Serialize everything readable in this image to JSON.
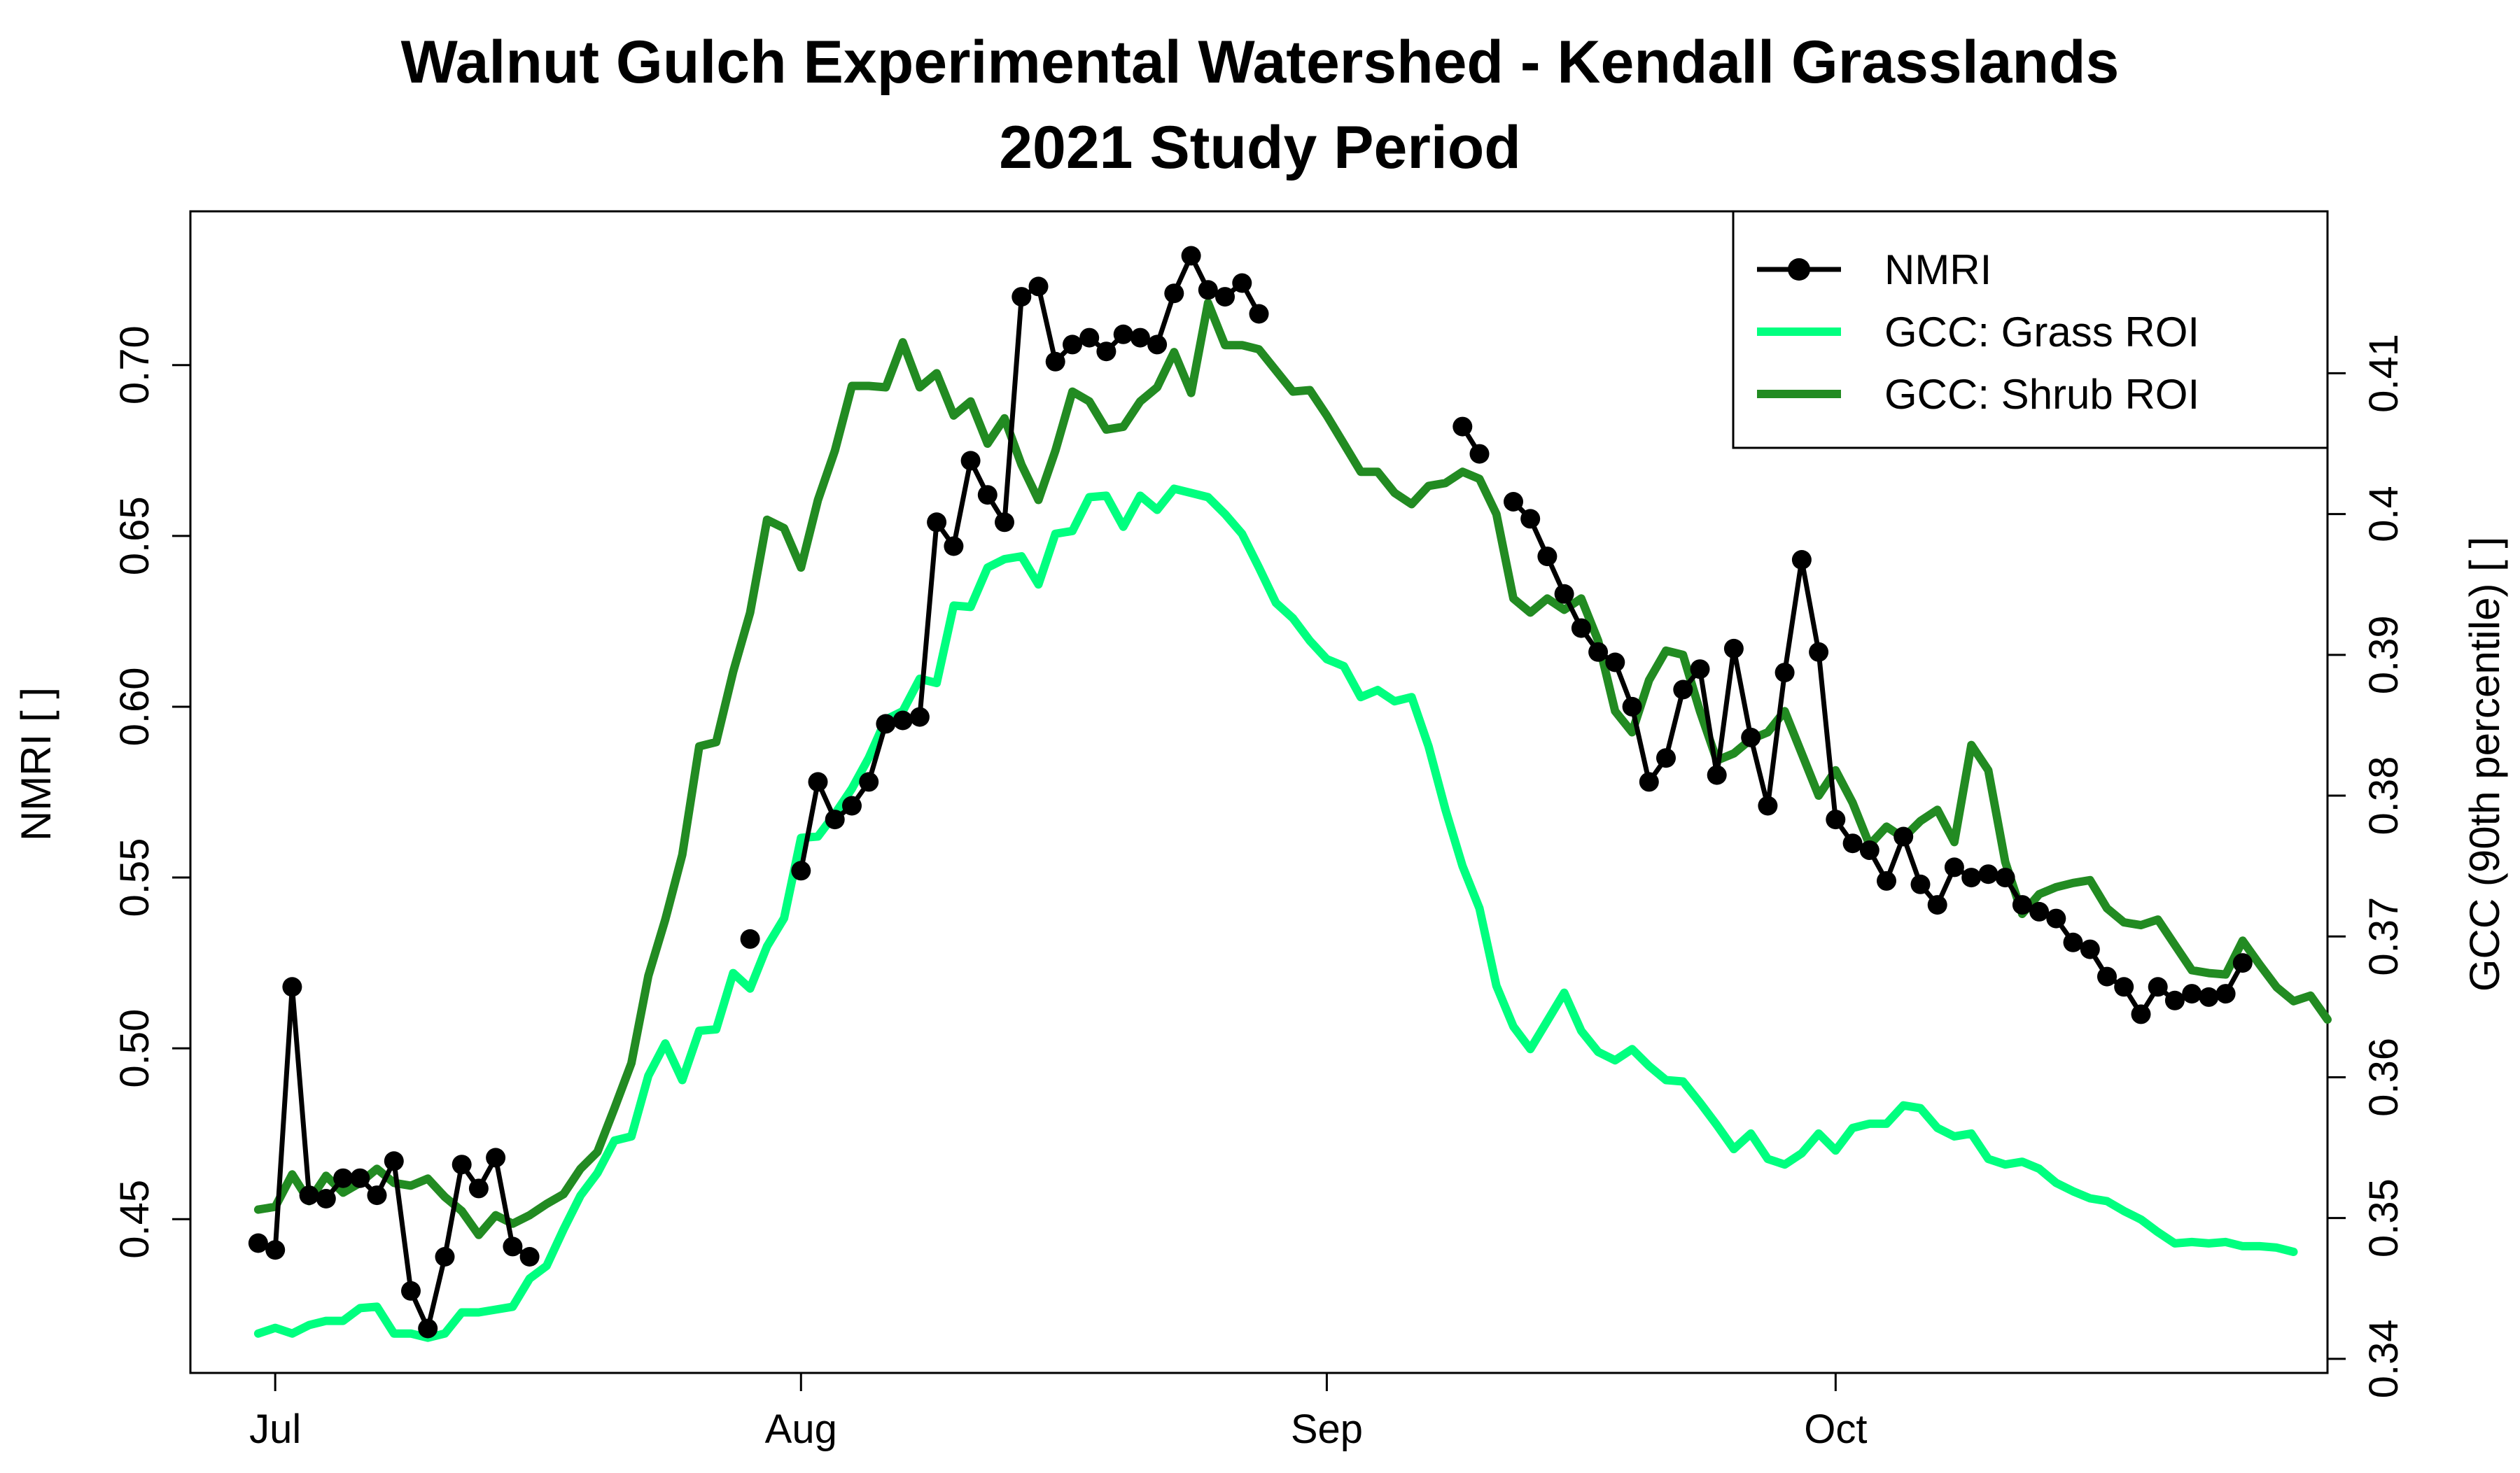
{
  "chart_data": {
    "type": "line",
    "title": "Walnut Gulch Experimental Watershed - Kendall Grasslands",
    "subtitle": "2021 Study Period",
    "xlabel": "",
    "ylabel": "NMRI [ ]",
    "ylabel_right": "GCC (90th percentile) [ ]",
    "xlim": [
      "2021-06-26",
      "2021-10-30"
    ],
    "ylim": [
      0.405,
      0.745
    ],
    "ylim_right": [
      0.339,
      0.4215
    ],
    "x_ticks": [
      {
        "date": "2021-07-01",
        "label": "Jul"
      },
      {
        "date": "2021-08-01",
        "label": "Aug"
      },
      {
        "date": "2021-09-01",
        "label": "Sep"
      },
      {
        "date": "2021-10-01",
        "label": "Oct"
      }
    ],
    "y_ticks": [
      "0.45",
      "0.50",
      "0.55",
      "0.60",
      "0.65",
      "0.70"
    ],
    "y_ticks_right": [
      "0.34",
      "0.35",
      "0.36",
      "0.37",
      "0.38",
      "0.39",
      "0.4",
      "0.41"
    ],
    "legend_position": "top-right",
    "grid": false,
    "series": [
      {
        "name": "NMRI",
        "axis": "left",
        "color": "#000000",
        "marker": "circle",
        "segments": [
          {
            "start": "2021-06-30",
            "values": [
              0.443,
              0.441,
              0.518,
              0.457,
              0.456,
              0.462,
              0.462,
              0.457,
              0.467,
              0.429,
              0.418,
              0.439,
              0.466,
              0.459,
              0.468,
              0.442,
              0.439
            ]
          },
          {
            "start": "2021-07-29",
            "values": [
              0.532
            ]
          },
          {
            "start": "2021-08-01",
            "values": [
              0.552,
              0.578,
              0.567,
              0.571,
              0.578,
              0.595,
              0.596,
              0.597,
              0.654,
              0.647,
              0.672,
              0.662,
              0.654,
              0.72,
              0.723,
              0.701,
              0.706,
              0.708,
              0.704,
              0.709,
              0.708,
              0.706,
              0.721,
              0.732,
              0.722,
              0.72,
              0.724,
              0.715
            ]
          },
          {
            "start": "2021-09-09",
            "values": [
              0.682,
              0.674
            ]
          },
          {
            "start": "2021-09-12",
            "values": [
              0.66,
              0.655,
              0.644,
              0.633,
              0.623,
              0.616,
              0.613,
              0.6,
              0.578,
              0.585,
              0.605,
              0.611,
              0.58,
              0.617,
              0.591,
              0.571,
              0.61,
              0.643,
              0.616,
              0.567,
              0.56,
              0.558,
              0.549,
              0.562,
              0.548,
              0.542,
              0.553,
              0.55,
              0.551,
              0.55,
              0.542,
              0.54,
              0.538,
              0.531,
              0.529,
              0.521,
              0.518,
              0.51,
              0.518,
              0.514,
              0.516,
              0.515,
              0.516,
              0.525
            ]
          }
        ]
      },
      {
        "name": "GCC: Grass ROI",
        "axis": "right",
        "color": "#00ff7f",
        "start": "2021-06-30",
        "values": [
          0.3418,
          0.3422,
          0.3418,
          0.3424,
          0.3427,
          0.3427,
          0.3436,
          0.3437,
          0.3418,
          0.3418,
          0.3415,
          0.3418,
          0.3433,
          0.3433,
          0.3435,
          0.3437,
          0.3457,
          0.3466,
          0.3492,
          0.3516,
          0.3532,
          0.3555,
          0.3558,
          0.3601,
          0.3624,
          0.3598,
          0.3633,
          0.3634,
          0.3674,
          0.3663,
          0.3693,
          0.3713,
          0.377,
          0.3771,
          0.3787,
          0.3805,
          0.3827,
          0.3854,
          0.386,
          0.3883,
          0.388,
          0.3935,
          0.3934,
          0.3962,
          0.3968,
          0.397,
          0.395,
          0.3986,
          0.3988,
          0.4012,
          0.4013,
          0.3991,
          0.4013,
          0.4003,
          0.4018,
          0.4015,
          0.4012,
          0.4,
          0.3986,
          0.3962,
          0.3937,
          0.3926,
          0.391,
          0.3897,
          0.3892,
          0.387,
          0.3875,
          0.3867,
          0.387,
          0.3835,
          0.379,
          0.375,
          0.372,
          0.3665,
          0.3636,
          0.362,
          0.364,
          0.366,
          0.3633,
          0.3618,
          0.3612,
          0.362,
          0.3608,
          0.3598,
          0.3597,
          0.3582,
          0.3566,
          0.3549,
          0.356,
          0.3542,
          0.3538,
          0.3546,
          0.356,
          0.3548,
          0.3564,
          0.3567,
          0.3567,
          0.358,
          0.3578,
          0.3564,
          0.3558,
          0.356,
          0.3542,
          0.3538,
          0.354,
          0.3535,
          0.3525,
          0.3519,
          0.3514,
          0.3512,
          0.3505,
          0.3499,
          0.349,
          0.3482,
          0.3483,
          0.3482,
          0.3483,
          0.348,
          0.348,
          0.3479,
          0.3476
        ],
        "values_from": "2021-06-30",
        "smoothed": true
      },
      {
        "name": "GCC: Shrub ROI",
        "axis": "right",
        "color": "#228b22",
        "start": "2021-06-30",
        "values": [
          0.3506,
          0.3508,
          0.3531,
          0.3512,
          0.353,
          0.3518,
          0.3525,
          0.3535,
          0.3525,
          0.3523,
          0.3528,
          0.3515,
          0.3505,
          0.3488,
          0.3502,
          0.3496,
          0.3502,
          0.351,
          0.3517,
          0.3535,
          0.3547,
          0.3578,
          0.361,
          0.3672,
          0.3712,
          0.3758,
          0.3835,
          0.3838,
          0.3888,
          0.393,
          0.3996,
          0.399,
          0.3962,
          0.401,
          0.4045,
          0.4091,
          0.4091,
          0.409,
          0.4122,
          0.409,
          0.41,
          0.407,
          0.408,
          0.405,
          0.4068,
          0.4035,
          0.401,
          0.4045,
          0.4087,
          0.408,
          0.406,
          0.4062,
          0.408,
          0.409,
          0.4115,
          0.4086,
          0.415,
          0.412,
          0.412,
          0.4117,
          0.4102,
          0.4087,
          0.4088,
          0.407,
          0.405,
          0.403,
          0.403,
          0.4015,
          0.4007,
          0.402,
          0.4022,
          0.403,
          0.4025,
          0.4,
          0.394,
          0.393,
          0.394,
          0.3932,
          0.394,
          0.391,
          0.386,
          0.3845,
          0.3882,
          0.3903,
          0.39,
          0.386,
          0.3825,
          0.383,
          0.384,
          0.3845,
          0.386,
          0.383,
          0.38,
          0.3818,
          0.3795,
          0.3765,
          0.3778,
          0.377,
          0.3782,
          0.379,
          0.3767,
          0.3836,
          0.3818,
          0.3753,
          0.3716,
          0.373,
          0.3735,
          0.3738,
          0.374,
          0.372,
          0.371,
          0.3708,
          0.3712,
          0.3694,
          0.3676,
          0.3674,
          0.3673,
          0.3697,
          0.368,
          0.3664,
          0.3654,
          0.3658,
          0.3641
        ]
      }
    ]
  }
}
